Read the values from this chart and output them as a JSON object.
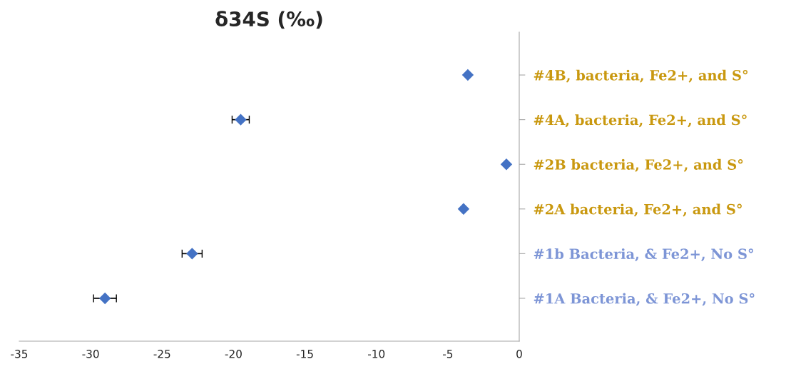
{
  "chart_data": {
    "type": "scatter",
    "title": "δ34S (‰)",
    "orientation": "horizontal",
    "marker": "diamond",
    "categories": [
      "#4B, bacteria, Fe2+, and S°",
      "#4A, bacteria, Fe2+, and S°",
      "#2B bacteria, Fe2+, and S°",
      "#2A bacteria, Fe2+, and S°",
      "#1b Bacteria, & Fe2+, No S°",
      "#1A Bacteria, & Fe2+, No S°"
    ],
    "series": [
      {
        "color": "#4472c4",
        "values": [
          -3.6,
          -19.5,
          -0.9,
          -3.9,
          -22.9,
          -29.0
        ],
        "errors": [
          null,
          0.6,
          null,
          null,
          0.7,
          0.8
        ]
      }
    ],
    "xlim": [
      -35,
      0
    ],
    "xticks": [
      -35,
      -30,
      -25,
      -20,
      -15,
      -10,
      -5,
      0
    ],
    "grid": false,
    "legend": false
  }
}
